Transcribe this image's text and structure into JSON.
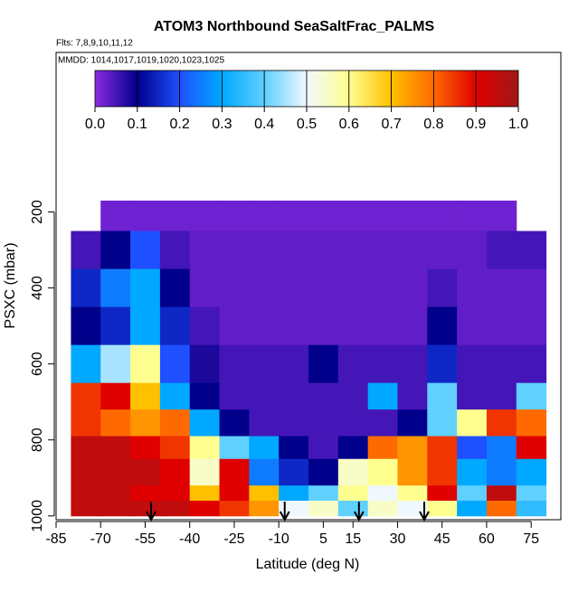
{
  "chart_data": {
    "type": "heatmap",
    "title": "ATOM3 Northbound SeaSaltFrac_PALMS",
    "subtitle": "Flts: 7,8,9,10,11,12",
    "annotation": "MMDD: 1014,1017,1019,1020,1023,1025",
    "x_label": "Latitude (deg N)",
    "y_label": "PSXC (mbar)",
    "xlim": [
      -85,
      85
    ],
    "ylim": [
      1010,
      -220
    ],
    "xticks": [
      -85,
      -70,
      -55,
      -40,
      -25,
      -10,
      5,
      15,
      30,
      45,
      60,
      75
    ],
    "yticks": [
      200,
      400,
      600,
      800,
      1000
    ],
    "x_edges": [
      -80,
      -70,
      -60,
      -50,
      -40,
      -30,
      -20,
      -10,
      0,
      10,
      20,
      30,
      40,
      50,
      60,
      70,
      80
    ],
    "y_edges": [
      170,
      250,
      350,
      450,
      550,
      650,
      720,
      790,
      850,
      920,
      960,
      1000
    ],
    "z": [
      [
        null,
        0.02,
        0.02,
        0.02,
        0.02,
        0.02,
        0.02,
        0.02,
        0.02,
        0.02,
        0.02,
        0.02,
        0.02,
        0.02,
        0.02,
        null
      ],
      [
        0.05,
        0.1,
        0.2,
        0.05,
        0.03,
        0.03,
        0.03,
        0.03,
        0.03,
        0.03,
        0.03,
        0.03,
        0.03,
        0.03,
        0.05,
        0.05
      ],
      [
        0.15,
        0.25,
        0.3,
        0.1,
        0.03,
        0.03,
        0.03,
        0.03,
        0.03,
        0.03,
        0.03,
        0.03,
        0.05,
        0.03,
        0.03,
        0.03
      ],
      [
        0.1,
        0.15,
        0.3,
        0.15,
        0.05,
        0.03,
        0.03,
        0.03,
        0.03,
        0.03,
        0.03,
        0.03,
        0.1,
        0.03,
        0.03,
        0.03
      ],
      [
        0.3,
        0.45,
        0.6,
        0.2,
        0.08,
        0.05,
        0.05,
        0.05,
        0.1,
        0.05,
        0.05,
        0.05,
        0.15,
        0.05,
        0.05,
        0.05
      ],
      [
        0.85,
        0.9,
        0.7,
        0.3,
        0.1,
        0.05,
        0.05,
        0.05,
        0.05,
        0.05,
        0.3,
        0.05,
        0.4,
        0.05,
        0.05,
        0.4
      ],
      [
        0.85,
        0.8,
        0.75,
        0.8,
        0.3,
        0.1,
        0.05,
        0.05,
        0.05,
        0.05,
        0.05,
        0.1,
        0.4,
        0.6,
        0.85,
        0.8
      ],
      [
        0.95,
        0.95,
        0.9,
        0.85,
        0.6,
        0.4,
        0.3,
        0.1,
        0.05,
        0.1,
        0.8,
        0.75,
        0.85,
        0.2,
        0.25,
        0.9
      ],
      [
        0.95,
        0.95,
        0.95,
        0.9,
        0.55,
        0.9,
        0.25,
        0.15,
        0.1,
        0.55,
        0.6,
        0.75,
        0.85,
        0.3,
        0.25,
        0.3
      ],
      [
        0.95,
        0.95,
        0.9,
        0.9,
        0.7,
        0.9,
        0.7,
        0.3,
        0.4,
        0.6,
        0.5,
        0.6,
        0.9,
        0.4,
        0.95,
        0.4
      ],
      [
        0.95,
        0.95,
        0.95,
        0.95,
        0.9,
        0.85,
        0.75,
        0.5,
        0.55,
        0.4,
        0.55,
        0.5,
        0.6,
        0.3,
        0.8,
        0.35
      ]
    ],
    "arrows": [
      -53,
      -8,
      17,
      39
    ],
    "colorbar_ticks": [
      {
        "value": 0,
        "label": "0.0"
      },
      0.1,
      0.2,
      0.3,
      0.4,
      0.5,
      0.6,
      0.7,
      0.8,
      0.9,
      {
        "value": 1,
        "label": "1.0"
      }
    ],
    "colorscale": [
      "#8a2be2",
      "#00008b",
      "#1e50ff",
      "#00a8ff",
      "#60d0ff",
      "#f0f8ff",
      "#ffff90",
      "#ffc000",
      "#ff6a00",
      "#e00000",
      "#a01818"
    ]
  }
}
